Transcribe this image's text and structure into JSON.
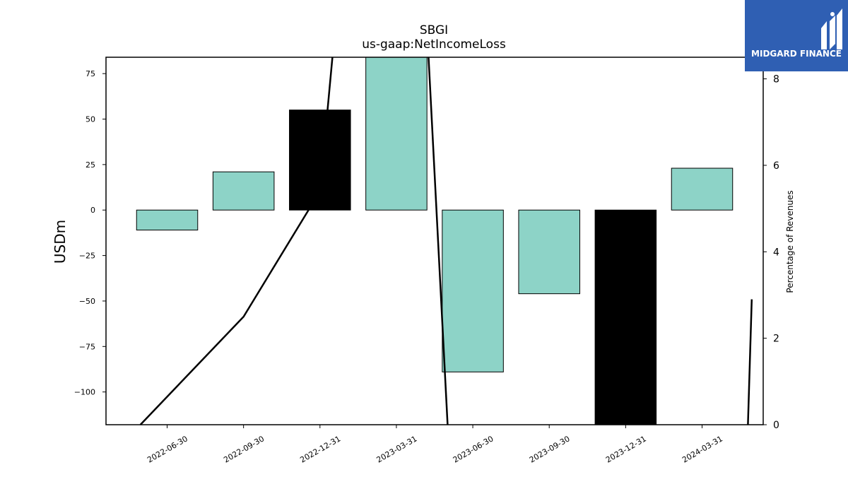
{
  "chart_data": {
    "type": "bar",
    "title": "SBGI",
    "subtitle": "us-gaap:NetIncomeLoss",
    "ylabel": "USDm",
    "y2label": "Percentage of Revenues",
    "categories": [
      "2022-06-30",
      "2022-09-30",
      "2022-12-31",
      "2023-03-31",
      "2023-06-30",
      "2023-09-30",
      "2023-12-31",
      "2024-03-31"
    ],
    "values": [
      -11,
      21,
      55,
      84,
      -89,
      -46,
      -119,
      23
    ],
    "bar_colors": [
      "#8dd3c7",
      "#8dd3c7",
      "#000000",
      "#8dd3c7",
      "#8dd3c7",
      "#8dd3c7",
      "#000000",
      "#8dd3c7"
    ],
    "ylim": [
      -118,
      84
    ],
    "yticks": [
      75,
      50,
      25,
      0,
      -25,
      -50,
      -75,
      -100
    ],
    "y2lim": [
      0,
      8.5
    ],
    "y2ticks": [
      0,
      2,
      4,
      6,
      8
    ],
    "line_series": {
      "color": "#000000",
      "segments": [
        [
          [
            -0.35,
            0
          ],
          [
            1,
            2.5
          ],
          [
            2,
            5.4
          ],
          [
            2.2,
            9.2
          ]
        ],
        [
          [
            3.4,
            9.2
          ],
          [
            3.67,
            0
          ]
        ],
        [
          [
            7.6,
            0
          ],
          [
            7.65,
            2.9
          ]
        ]
      ]
    },
    "grid": false,
    "legend": "none"
  },
  "logo": {
    "text": "MIDGARD FINANCE",
    "bg": "#2f5fb3"
  }
}
